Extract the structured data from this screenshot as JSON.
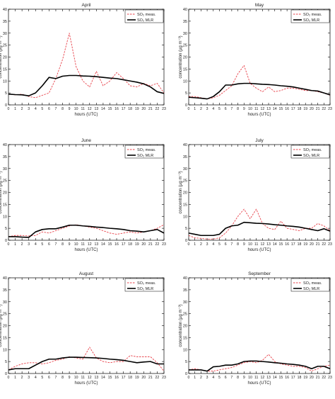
{
  "chart_data": [
    {
      "type": "line",
      "title": "April",
      "xlabel": "hours (UTC)",
      "ylabel": "concentration (µg m⁻³)",
      "x": [
        0,
        1,
        2,
        3,
        4,
        5,
        6,
        7,
        8,
        9,
        10,
        11,
        12,
        13,
        14,
        15,
        16,
        17,
        18,
        19,
        20,
        21,
        22,
        23
      ],
      "xticks": [
        "0",
        "1",
        "2",
        "3",
        "4",
        "5",
        "6",
        "7",
        "8",
        "9",
        "10",
        "11",
        "12",
        "13",
        "14",
        "15",
        "16",
        "17",
        "18",
        "19",
        "20",
        "21",
        "22",
        "23"
      ],
      "ylim": [
        0,
        40
      ],
      "yticks": [
        "0",
        "5",
        "10",
        "15",
        "20",
        "25",
        "30",
        "35",
        "40"
      ],
      "legend_position": "top-right",
      "series": [
        {
          "name": "SO₂ meas.",
          "color": "#e8414a",
          "style": "dashed",
          "values": [
            4.5,
            4.2,
            4.5,
            3.5,
            3.0,
            4.0,
            5.0,
            11.0,
            19.0,
            30.0,
            16.0,
            10.0,
            7.5,
            14.0,
            8.0,
            10.0,
            13.5,
            11.0,
            8.0,
            7.5,
            9.0,
            8.0,
            9.0,
            5.0
          ]
        },
        {
          "name": "SO₂ MLR",
          "color": "#000000",
          "style": "solid",
          "values": [
            4.5,
            4.3,
            4.2,
            3.8,
            5.0,
            8.0,
            11.5,
            11.0,
            12.0,
            12.3,
            12.3,
            12.1,
            12.0,
            11.8,
            11.5,
            11.2,
            11.0,
            10.5,
            10.0,
            9.5,
            8.8,
            7.5,
            5.5,
            4.8
          ]
        }
      ]
    },
    {
      "type": "line",
      "title": "May",
      "xlabel": "hours (UTC)",
      "ylabel": "concentration (µg m⁻³)",
      "x": [
        0,
        1,
        2,
        3,
        4,
        5,
        6,
        7,
        8,
        9,
        10,
        11,
        12,
        13,
        14,
        15,
        16,
        17,
        18,
        19,
        20,
        21,
        22,
        23
      ],
      "xticks": [
        "0",
        "1",
        "2",
        "3",
        "4",
        "5",
        "6",
        "7",
        "8",
        "9",
        "10",
        "11",
        "12",
        "13",
        "14",
        "15",
        "16",
        "17",
        "18",
        "19",
        "20",
        "21",
        "22",
        "23"
      ],
      "ylim": [
        0,
        40
      ],
      "yticks": [
        "0",
        "5",
        "10",
        "15",
        "20",
        "25",
        "30",
        "35",
        "40"
      ],
      "legend_position": "top-right",
      "series": [
        {
          "name": "SO₂ meas.",
          "color": "#e8414a",
          "style": "dashed",
          "values": [
            3.5,
            3.5,
            3.0,
            2.5,
            3.0,
            4.0,
            6.0,
            8.0,
            13.0,
            16.5,
            9.0,
            7.0,
            5.5,
            7.5,
            5.5,
            6.0,
            7.0,
            7.0,
            6.5,
            6.0,
            6.0,
            5.5,
            5.0,
            4.0
          ]
        },
        {
          "name": "SO₂ MLR",
          "color": "#000000",
          "style": "solid",
          "values": [
            3.2,
            3.0,
            2.8,
            2.5,
            3.5,
            5.5,
            8.3,
            8.3,
            8.8,
            9.0,
            9.0,
            8.8,
            8.6,
            8.5,
            8.3,
            8.0,
            7.8,
            7.5,
            7.0,
            6.5,
            6.0,
            5.8,
            5.0,
            4.2
          ]
        }
      ]
    },
    {
      "type": "line",
      "title": "June",
      "xlabel": "hours (UTC)",
      "ylabel": "concentration (µg m⁻³)",
      "x": [
        0,
        1,
        2,
        3,
        4,
        5,
        6,
        7,
        8,
        9,
        10,
        11,
        12,
        13,
        14,
        15,
        16,
        17,
        18,
        19,
        20,
        21,
        22,
        23
      ],
      "xticks": [
        "0",
        "1",
        "2",
        "3",
        "4",
        "5",
        "6",
        "7",
        "8",
        "9",
        "10",
        "11",
        "12",
        "13",
        "14",
        "15",
        "16",
        "17",
        "18",
        "19",
        "20",
        "21",
        "22",
        "23"
      ],
      "ylim": [
        0,
        40
      ],
      "yticks": [
        "0",
        "5",
        "10",
        "15",
        "20",
        "25",
        "30",
        "35",
        "40"
      ],
      "legend_position": "top-right",
      "series": [
        {
          "name": "SO₂ meas.",
          "color": "#e8414a",
          "style": "dashed",
          "values": [
            1.5,
            2.0,
            2.0,
            1.8,
            2.0,
            3.5,
            3.0,
            4.0,
            5.0,
            6.0,
            6.5,
            6.0,
            5.5,
            5.0,
            4.0,
            3.0,
            2.5,
            3.0,
            3.5,
            3.0,
            3.5,
            4.0,
            5.0,
            6.5
          ]
        },
        {
          "name": "SO₂ MLR",
          "color": "#000000",
          "style": "solid",
          "values": [
            1.5,
            1.5,
            1.3,
            1.2,
            3.5,
            4.5,
            4.8,
            4.8,
            5.5,
            6.3,
            6.3,
            6.0,
            5.8,
            5.5,
            5.3,
            5.0,
            4.8,
            4.5,
            4.0,
            3.8,
            3.5,
            4.0,
            4.5,
            3.0
          ]
        }
      ]
    },
    {
      "type": "line",
      "title": "July",
      "xlabel": "hours (UTC)",
      "ylabel": "concentration (µg m⁻³)",
      "x": [
        0,
        1,
        2,
        3,
        4,
        5,
        6,
        7,
        8,
        9,
        10,
        11,
        12,
        13,
        14,
        15,
        16,
        17,
        18,
        19,
        20,
        21,
        22,
        23
      ],
      "xticks": [
        "0",
        "1",
        "2",
        "3",
        "4",
        "5",
        "6",
        "7",
        "8",
        "9",
        "10",
        "11",
        "12",
        "13",
        "14",
        "15",
        "16",
        "17",
        "18",
        "19",
        "20",
        "21",
        "22",
        "23"
      ],
      "ylim": [
        0,
        40
      ],
      "yticks": [
        "0",
        "5",
        "10",
        "15",
        "20",
        "25",
        "30",
        "35",
        "40"
      ],
      "legend_position": "top-right",
      "series": [
        {
          "name": "SO₂ meas.",
          "color": "#e8414a",
          "style": "dashed",
          "values": [
            2.0,
            1.0,
            0.8,
            0.5,
            0.5,
            1.0,
            3.0,
            6.0,
            10.0,
            13.0,
            9.0,
            13.0,
            7.0,
            5.0,
            4.5,
            8.0,
            5.0,
            4.5,
            4.0,
            5.0,
            5.0,
            7.0,
            6.0,
            4.0
          ]
        },
        {
          "name": "SO₂ MLR",
          "color": "#000000",
          "style": "solid",
          "values": [
            3.0,
            2.5,
            2.0,
            2.0,
            2.0,
            2.5,
            5.0,
            6.0,
            6.3,
            7.5,
            7.3,
            7.1,
            7.0,
            6.8,
            6.5,
            6.3,
            6.0,
            5.8,
            5.5,
            5.0,
            4.5,
            4.0,
            4.8,
            3.8
          ]
        }
      ]
    },
    {
      "type": "line",
      "title": "August",
      "xlabel": "hours (UTC)",
      "ylabel": "concentration (µg m⁻³)",
      "x": [
        0,
        1,
        2,
        3,
        4,
        5,
        6,
        7,
        8,
        9,
        10,
        11,
        12,
        13,
        14,
        15,
        16,
        17,
        18,
        19,
        20,
        21,
        22,
        23
      ],
      "xticks": [
        "0",
        "1",
        "2",
        "3",
        "4",
        "5",
        "6",
        "7",
        "8",
        "9",
        "10",
        "11",
        "12",
        "13",
        "14",
        "15",
        "16",
        "17",
        "18",
        "19",
        "20",
        "21",
        "22",
        "23"
      ],
      "ylim": [
        0,
        40
      ],
      "yticks": [
        "0",
        "5",
        "10",
        "15",
        "20",
        "25",
        "30",
        "35",
        "40"
      ],
      "legend_position": "top-right",
      "series": [
        {
          "name": "SO₂ meas.",
          "color": "#e8414a",
          "style": "dashed",
          "values": [
            1.5,
            3.0,
            4.0,
            4.5,
            4.5,
            4.0,
            4.5,
            5.5,
            6.0,
            7.0,
            6.5,
            6.0,
            11.0,
            6.5,
            5.0,
            4.5,
            5.0,
            5.0,
            7.5,
            7.0,
            7.0,
            7.0,
            4.5,
            1.0
          ]
        },
        {
          "name": "SO₂ MLR",
          "color": "#000000",
          "style": "solid",
          "values": [
            1.5,
            2.0,
            2.0,
            2.0,
            3.5,
            5.0,
            6.0,
            6.0,
            6.5,
            6.8,
            6.8,
            6.7,
            6.6,
            6.5,
            6.3,
            6.0,
            5.8,
            5.5,
            5.0,
            4.5,
            4.8,
            5.0,
            4.0,
            4.0
          ]
        }
      ]
    },
    {
      "type": "line",
      "title": "September",
      "xlabel": "hours (UTC)",
      "ylabel": "concentration (µg m⁻³)",
      "x": [
        0,
        1,
        2,
        3,
        4,
        5,
        6,
        7,
        8,
        9,
        10,
        11,
        12,
        13,
        14,
        15,
        16,
        17,
        18,
        19,
        20,
        21,
        22,
        23
      ],
      "xticks": [
        "0",
        "1",
        "2",
        "3",
        "4",
        "5",
        "6",
        "7",
        "8",
        "9",
        "10",
        "11",
        "12",
        "13",
        "14",
        "15",
        "16",
        "17",
        "18",
        "19",
        "20",
        "21",
        "22",
        "23"
      ],
      "ylim": [
        0,
        40
      ],
      "yticks": [
        "0",
        "5",
        "10",
        "15",
        "20",
        "25",
        "30",
        "35",
        "40"
      ],
      "legend_position": "top-right",
      "series": [
        {
          "name": "SO₂ meas.",
          "color": "#e8414a",
          "style": "dashed",
          "values": [
            1.5,
            2.0,
            1.5,
            1.0,
            1.0,
            1.5,
            2.0,
            2.5,
            3.5,
            4.5,
            5.0,
            4.5,
            5.5,
            8.0,
            5.0,
            4.0,
            3.5,
            3.0,
            3.0,
            2.5,
            1.0,
            2.0,
            3.0,
            3.5
          ]
        },
        {
          "name": "SO₂ MLR",
          "color": "#000000",
          "style": "solid",
          "values": [
            1.5,
            1.5,
            1.5,
            1.0,
            2.8,
            3.0,
            3.5,
            3.5,
            4.0,
            5.0,
            5.2,
            5.2,
            5.0,
            4.8,
            4.5,
            4.3,
            4.0,
            3.8,
            3.5,
            3.0,
            2.0,
            3.0,
            3.0,
            2.0
          ]
        }
      ]
    }
  ]
}
